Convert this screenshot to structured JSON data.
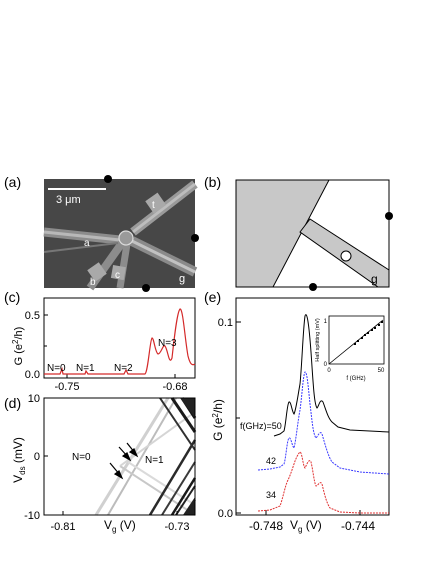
{
  "panels": {
    "a": {
      "label": "(a)",
      "scale_bar": "3 μm",
      "lead_labels": [
        "a",
        "b",
        "c",
        "t",
        "g"
      ]
    },
    "b": {
      "label": "(b)",
      "gate_label": "g"
    },
    "c": {
      "label": "(c)",
      "ylabel_G": "G (e",
      "ylabel_sup": "2",
      "ylabel_end": "/h)",
      "yticks": [
        "0.5",
        "0.0"
      ],
      "xticks": [
        "-0.75",
        "-0.68"
      ],
      "state_labels": [
        "N=0",
        "N=1",
        "N=2",
        "N=3"
      ],
      "line_color": "#d42a2a"
    },
    "d": {
      "label": "(d)",
      "ylabel_V": "V",
      "ylabel_sub": "ds",
      "ylabel_unit": " (mV)",
      "yticks": [
        "10",
        "0",
        "-10"
      ],
      "xlabel_V": "V",
      "xlabel_sub": "g",
      "xlabel_unit": " (V)",
      "xticks": [
        "-0.81",
        "-0.73"
      ],
      "region_labels": [
        "N=0",
        "N=1"
      ]
    },
    "e": {
      "label": "(e)",
      "ylabel_G": "G (e",
      "ylabel_sup": "2",
      "ylabel_end": "/h)",
      "yticks": [
        "0.1",
        "0.0"
      ],
      "xlabel_V": "V",
      "xlabel_sub": "g",
      "xlabel_unit": " (V)",
      "xticks": [
        "-0.748",
        "-0.744"
      ],
      "trace_labels": [
        "f(GHz)=50",
        "42",
        "34"
      ],
      "trace_colors": [
        "#000000",
        "#3a3aff",
        "#e03030"
      ],
      "inset": {
        "ylabel": "Half splitting (mV)",
        "xlabel": "f (GHz)",
        "xticks": [
          "0",
          "50"
        ],
        "yticks": [
          "1",
          "0"
        ]
      }
    }
  }
}
